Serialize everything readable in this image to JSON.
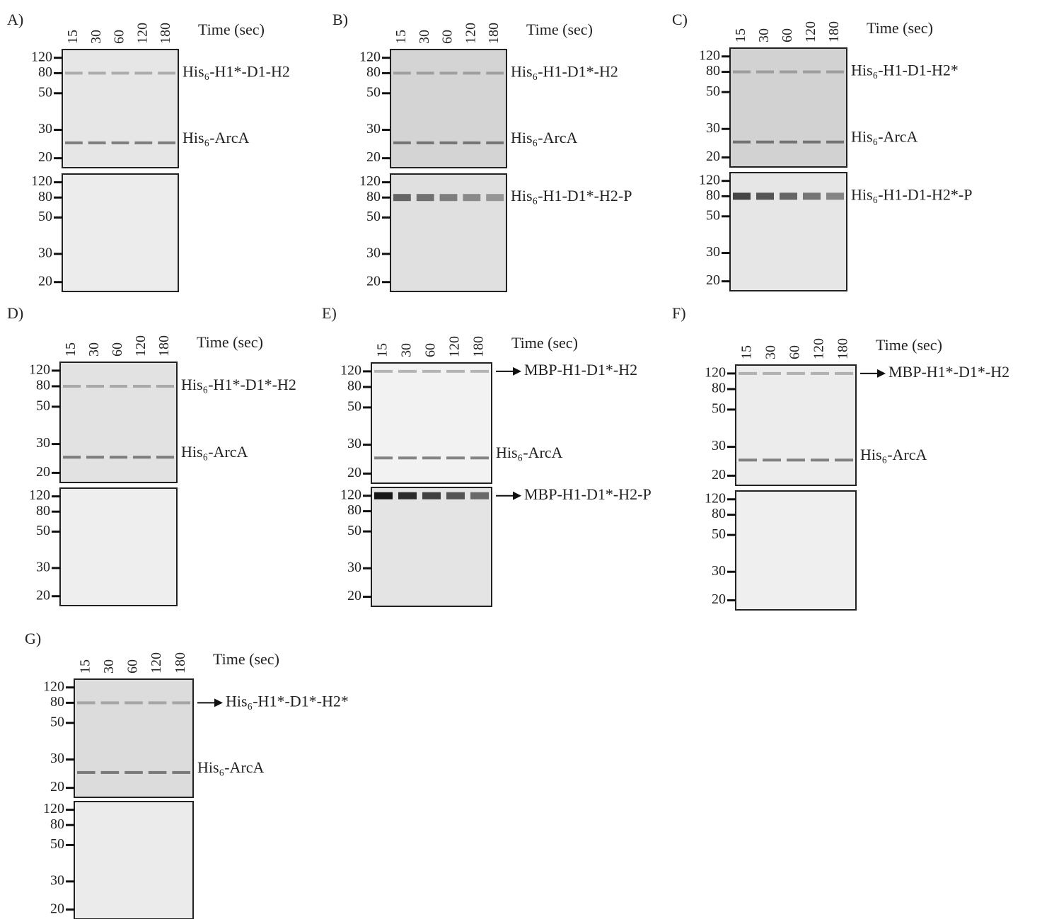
{
  "panels": [
    {
      "label": "A)",
      "lanes": [
        "15",
        "30",
        "60",
        "120",
        "180"
      ],
      "time_label": "Time (sec)",
      "top": {
        "markers": [
          "120",
          "80",
          "50",
          "30",
          "20"
        ],
        "labels": [
          "His₆-H1*-D1-H2",
          "His₆-ArcA"
        ]
      },
      "bottom": {
        "markers": [
          "120",
          "80",
          "50",
          "30",
          "20"
        ],
        "labels": []
      }
    },
    {
      "label": "B)",
      "lanes": [
        "15",
        "30",
        "60",
        "120",
        "180"
      ],
      "time_label": "Time (sec)",
      "top": {
        "markers": [
          "120",
          "80",
          "50",
          "30",
          "20"
        ],
        "labels": [
          "His₆-H1-D1*-H2",
          "His₆-ArcA"
        ]
      },
      "bottom": {
        "markers": [
          "120",
          "80",
          "50",
          "30",
          "20"
        ],
        "labels": [
          "His₆-H1-D1*-H2-P"
        ]
      }
    },
    {
      "label": "C)",
      "lanes": [
        "15",
        "30",
        "60",
        "120",
        "180"
      ],
      "time_label": "Time (sec)",
      "top": {
        "markers": [
          "120",
          "80",
          "50",
          "30",
          "20"
        ],
        "labels": [
          "His₆-H1-D1-H2*",
          "His₆-ArcA"
        ]
      },
      "bottom": {
        "markers": [
          "120",
          "80",
          "50",
          "30",
          "20"
        ],
        "labels": [
          "His₆-H1-D1-H2*-P"
        ]
      }
    },
    {
      "label": "D)",
      "lanes": [
        "15",
        "30",
        "60",
        "120",
        "180"
      ],
      "time_label": "Time (sec)",
      "top": {
        "markers": [
          "120",
          "80",
          "50",
          "30",
          "20"
        ],
        "labels": [
          "His₆-H1*-D1*-H2",
          "His₆-ArcA"
        ]
      },
      "bottom": {
        "markers": [
          "120",
          "80",
          "50",
          "30",
          "20"
        ],
        "labels": []
      }
    },
    {
      "label": "E)",
      "lanes": [
        "15",
        "30",
        "60",
        "120",
        "180"
      ],
      "time_label": "Time (sec)",
      "top": {
        "markers": [
          "120",
          "80",
          "50",
          "30",
          "20"
        ],
        "labels": [
          "MBP-H1-D1*-H2",
          "His₆-ArcA"
        ]
      },
      "bottom": {
        "markers": [
          "120",
          "80",
          "50",
          "30",
          "20"
        ],
        "labels": [
          "MBP-H1-D1*-H2-P"
        ]
      }
    },
    {
      "label": "F)",
      "lanes": [
        "15",
        "30",
        "60",
        "120",
        "180"
      ],
      "time_label": "Time (sec)",
      "top": {
        "markers": [
          "120",
          "80",
          "50",
          "30",
          "20"
        ],
        "labels": [
          "MBP-H1*-D1*-H2",
          "His₆-ArcA"
        ]
      },
      "bottom": {
        "markers": [
          "120",
          "80",
          "50",
          "30",
          "20"
        ],
        "labels": []
      }
    },
    {
      "label": "G)",
      "lanes": [
        "15",
        "30",
        "60",
        "120",
        "180"
      ],
      "time_label": "Time (sec)",
      "top": {
        "markers": [
          "120",
          "80",
          "50",
          "30",
          "20"
        ],
        "labels": [
          "His₆-H1*-D1*-H2*",
          "His₆-ArcA"
        ]
      },
      "bottom": {
        "markers": [
          "120",
          "80",
          "50",
          "30",
          "20"
        ],
        "labels": []
      }
    }
  ]
}
